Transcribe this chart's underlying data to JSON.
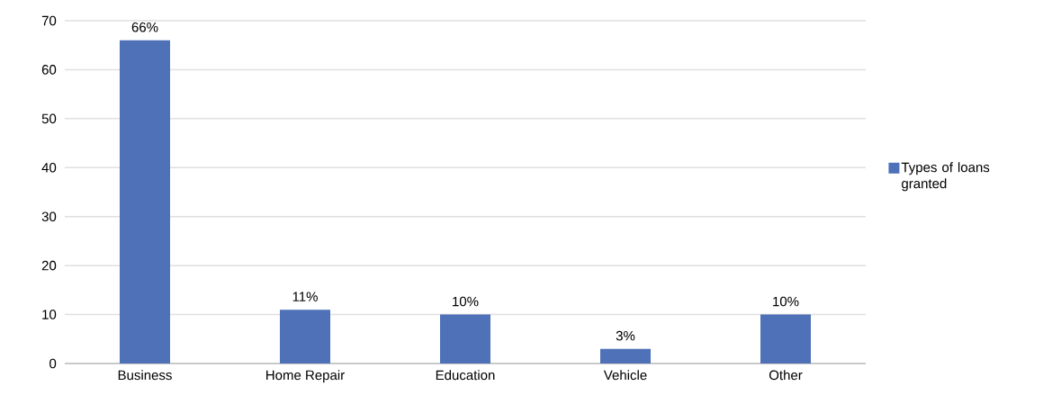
{
  "chart_data": {
    "type": "bar",
    "categories": [
      "Business",
      "Home Repair",
      "Education",
      "Vehicle",
      "Other"
    ],
    "series": [
      {
        "name": "Types of loans granted",
        "color": "#4e71b8",
        "values": [
          66,
          11,
          10,
          3,
          10
        ],
        "value_labels": [
          "66%",
          "11%",
          "10%",
          "3%",
          "10%"
        ]
      }
    ],
    "ylim": [
      0,
      70
    ],
    "yticks": [
      0,
      10,
      20,
      30,
      40,
      50,
      60,
      70
    ],
    "grid": "y",
    "legend": "right"
  }
}
